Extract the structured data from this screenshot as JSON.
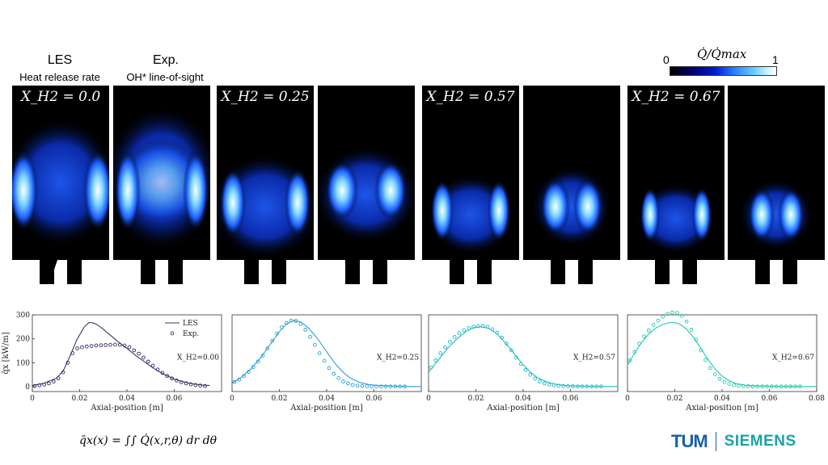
{
  "header": {
    "les_title": "LES",
    "les_subtitle": "Heat release rate",
    "exp_title": "Exp.",
    "exp_subtitle": "OH* line-of-sight"
  },
  "colorbar": {
    "label": "Q̇/Q̇max",
    "min_label": "0",
    "max_label": "1"
  },
  "flame_titles": [
    "X_H2 = 0.0",
    "X_H2 = 0.25",
    "X_H2 = 0.57",
    "X_H2 = 0.67"
  ],
  "footer": {
    "equation": "q̄x(x) = ∫∫ Q̇(x,r,θ) dr dθ",
    "logo_left": "TUM",
    "logo_right": "SIEMENS"
  },
  "colors": {
    "panel1_line": "#3a3a5c",
    "panel1_marker": "#2b2b6b",
    "panel2": "#2a9fd6",
    "panel3": "#22b8c8",
    "panel4": "#20c8b0",
    "flame_black": "#000000"
  },
  "chart_data": [
    {
      "type": "line",
      "xlabel": "Axial-position [m]",
      "ylabel": "q̄x [kW/m]",
      "xlim": [
        0,
        0.08
      ],
      "ylim": [
        -20,
        300
      ],
      "xticks": [
        0,
        0.02,
        0.04,
        0.06
      ],
      "xtick_labels": [
        "0",
        "0.02",
        "0.04",
        "0.06"
      ],
      "yticks": [
        0,
        100,
        200,
        300
      ],
      "ytick_labels": [
        "0",
        "100",
        "200",
        "300"
      ],
      "annotation": "X_H2=0.00",
      "legend": {
        "position": "top-right",
        "entries": [
          "LES",
          "Exp."
        ]
      },
      "series": [
        {
          "name": "LES",
          "style": "line",
          "x": [
            0,
            0.005,
            0.01,
            0.013,
            0.016,
            0.019,
            0.022,
            0.024,
            0.026,
            0.028,
            0.03,
            0.033,
            0.036,
            0.04,
            0.044,
            0.048,
            0.052,
            0.056,
            0.06,
            0.064,
            0.068,
            0.072,
            0.075
          ],
          "y": [
            5,
            15,
            35,
            65,
            130,
            200,
            250,
            268,
            266,
            255,
            240,
            215,
            190,
            160,
            128,
            100,
            72,
            50,
            32,
            20,
            12,
            7,
            5
          ]
        },
        {
          "name": "Exp.",
          "style": "markers",
          "x": [
            0.001,
            0.003,
            0.005,
            0.007,
            0.009,
            0.011,
            0.013,
            0.015,
            0.017,
            0.019,
            0.021,
            0.023,
            0.025,
            0.027,
            0.029,
            0.031,
            0.033,
            0.035,
            0.037,
            0.039,
            0.041,
            0.043,
            0.045,
            0.047,
            0.049,
            0.051,
            0.053,
            0.055,
            0.057,
            0.059,
            0.061,
            0.063,
            0.065,
            0.067,
            0.069,
            0.071,
            0.073
          ],
          "y": [
            3,
            6,
            9,
            14,
            22,
            35,
            60,
            100,
            140,
            160,
            165,
            168,
            170,
            172,
            173,
            174,
            175,
            176,
            175,
            172,
            165,
            152,
            138,
            122,
            105,
            88,
            72,
            58,
            45,
            35,
            26,
            19,
            14,
            10,
            7,
            5,
            3
          ]
        }
      ]
    },
    {
      "type": "line",
      "xlabel": "Axial-position [m]",
      "xlim": [
        0,
        0.08
      ],
      "ylim": [
        -20,
        300
      ],
      "xticks": [
        0,
        0.02,
        0.04,
        0.06
      ],
      "xtick_labels": [
        "0",
        "0.02",
        "0.04",
        "0.06"
      ],
      "annotation": "X_H2=0.25",
      "series": [
        {
          "name": "LES",
          "style": "line",
          "x": [
            0,
            0.004,
            0.008,
            0.012,
            0.016,
            0.02,
            0.023,
            0.026,
            0.029,
            0.032,
            0.035,
            0.038,
            0.041,
            0.044,
            0.047,
            0.05,
            0.054,
            0.058,
            0.062,
            0.066,
            0.07,
            0.075,
            0.08
          ],
          "y": [
            15,
            40,
            75,
            120,
            175,
            230,
            262,
            276,
            270,
            248,
            215,
            175,
            132,
            92,
            60,
            36,
            18,
            9,
            5,
            3,
            2,
            1,
            1
          ]
        },
        {
          "name": "Exp.",
          "style": "markers",
          "x": [
            0.001,
            0.003,
            0.005,
            0.007,
            0.009,
            0.011,
            0.013,
            0.015,
            0.017,
            0.019,
            0.021,
            0.023,
            0.025,
            0.027,
            0.029,
            0.031,
            0.033,
            0.035,
            0.037,
            0.039,
            0.041,
            0.043,
            0.045,
            0.047,
            0.049,
            0.051,
            0.053,
            0.055,
            0.057,
            0.059,
            0.061,
            0.063,
            0.065,
            0.067,
            0.069,
            0.071,
            0.073
          ],
          "y": [
            20,
            30,
            45,
            62,
            82,
            105,
            130,
            160,
            192,
            222,
            248,
            266,
            276,
            275,
            262,
            238,
            208,
            175,
            140,
            108,
            78,
            54,
            36,
            22,
            14,
            8,
            5,
            3,
            2,
            1,
            1,
            1,
            1,
            1,
            1,
            1,
            1
          ]
        }
      ]
    },
    {
      "type": "line",
      "xlabel": "Axial-position [m]",
      "xlim": [
        0,
        0.08
      ],
      "ylim": [
        -20,
        300
      ],
      "xticks": [
        0,
        0.02,
        0.04,
        0.06
      ],
      "xtick_labels": [
        "0",
        "0.02",
        "0.04",
        "0.06"
      ],
      "annotation": "X_H2=0.57",
      "series": [
        {
          "name": "LES",
          "style": "line",
          "x": [
            0,
            0.004,
            0.008,
            0.012,
            0.016,
            0.019,
            0.022,
            0.025,
            0.028,
            0.031,
            0.034,
            0.037,
            0.04,
            0.043,
            0.046,
            0.05,
            0.054,
            0.058,
            0.062,
            0.066,
            0.07,
            0.075,
            0.08
          ],
          "y": [
            60,
            110,
            160,
            200,
            232,
            246,
            250,
            245,
            228,
            200,
            165,
            128,
            92,
            62,
            38,
            20,
            10,
            5,
            3,
            2,
            1,
            1,
            1
          ]
        },
        {
          "name": "Exp.",
          "style": "markers",
          "x": [
            0.001,
            0.003,
            0.005,
            0.007,
            0.009,
            0.011,
            0.013,
            0.015,
            0.017,
            0.019,
            0.021,
            0.023,
            0.025,
            0.027,
            0.029,
            0.031,
            0.033,
            0.035,
            0.037,
            0.039,
            0.041,
            0.043,
            0.045,
            0.047,
            0.049,
            0.051,
            0.053,
            0.055,
            0.057,
            0.059,
            0.061,
            0.063,
            0.065,
            0.067,
            0.069,
            0.071,
            0.073
          ],
          "y": [
            80,
            110,
            140,
            165,
            188,
            208,
            224,
            236,
            245,
            250,
            253,
            254,
            250,
            240,
            225,
            205,
            180,
            152,
            122,
            95,
            70,
            50,
            34,
            22,
            14,
            9,
            6,
            4,
            3,
            2,
            2,
            1,
            1,
            1,
            1,
            1,
            1
          ]
        }
      ]
    },
    {
      "type": "line",
      "xlabel": "Axial-position [m]",
      "xlim": [
        0,
        0.08
      ],
      "ylim": [
        -20,
        300
      ],
      "xticks": [
        0,
        0.02,
        0.04,
        0.06,
        0.08
      ],
      "xtick_labels": [
        "0",
        "0.02",
        "0.04",
        "0.06",
        "0.08"
      ],
      "annotation": "X_H2=0.67",
      "series": [
        {
          "name": "LES",
          "style": "line",
          "x": [
            0,
            0.003,
            0.006,
            0.009,
            0.012,
            0.015,
            0.018,
            0.02,
            0.022,
            0.025,
            0.028,
            0.031,
            0.034,
            0.037,
            0.04,
            0.043,
            0.046,
            0.05,
            0.055,
            0.06,
            0.065,
            0.07,
            0.075,
            0.08
          ],
          "y": [
            90,
            140,
            185,
            220,
            245,
            260,
            268,
            268,
            262,
            240,
            205,
            160,
            115,
            75,
            45,
            25,
            13,
            6,
            3,
            2,
            1,
            1,
            1,
            1
          ]
        },
        {
          "name": "Exp.",
          "style": "markers",
          "x": [
            0.001,
            0.003,
            0.005,
            0.007,
            0.009,
            0.011,
            0.013,
            0.015,
            0.017,
            0.019,
            0.021,
            0.023,
            0.025,
            0.027,
            0.029,
            0.031,
            0.033,
            0.035,
            0.037,
            0.039,
            0.041,
            0.043,
            0.045,
            0.047,
            0.049,
            0.051,
            0.053,
            0.055,
            0.057,
            0.059,
            0.061,
            0.063,
            0.065,
            0.067,
            0.069,
            0.071,
            0.073
          ],
          "y": [
            110,
            145,
            180,
            210,
            235,
            258,
            276,
            292,
            304,
            310,
            308,
            296,
            272,
            238,
            196,
            152,
            112,
            78,
            52,
            33,
            20,
            12,
            7,
            4,
            3,
            2,
            1,
            1,
            1,
            1,
            1,
            1,
            1,
            1,
            1,
            1,
            1
          ]
        }
      ]
    }
  ]
}
